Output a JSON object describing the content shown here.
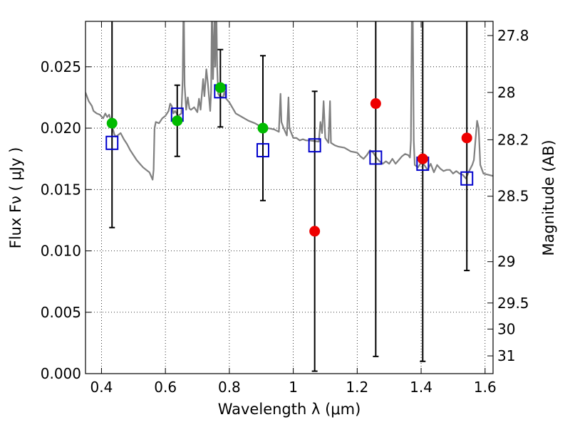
{
  "chart_data": {
    "type": "scatter",
    "title": "",
    "xlabel": "Wavelength  λ (μm)",
    "ylabel_left": "Flux  Fν  ( μJy )",
    "ylabel_right": "Magnitude (AB)",
    "xlim": [
      0.35,
      1.625
    ],
    "ylim": [
      0.0,
      0.0287
    ],
    "grid": true,
    "x_ticks": [
      0.4,
      0.6,
      0.8,
      1.0,
      1.2,
      1.4,
      1.6
    ],
    "x_tick_labels": [
      "0.4",
      "0.6",
      "0.8",
      "1",
      "1.2",
      "1.4",
      "1.6"
    ],
    "y_ticks": [
      0.0,
      0.005,
      0.01,
      0.015,
      0.02,
      0.025
    ],
    "y_tick_labels": [
      "0.000",
      "0.005",
      "0.010",
      "0.015",
      "0.020",
      "0.025"
    ],
    "right_ticks": [
      {
        "mag": 27.8,
        "label": "27.8"
      },
      {
        "mag": 28.0,
        "label": "28"
      },
      {
        "mag": 28.2,
        "label": "28.2"
      },
      {
        "mag": 28.5,
        "label": "28.5"
      },
      {
        "mag": 29.0,
        "label": "29"
      },
      {
        "mag": 29.5,
        "label": "29.5"
      },
      {
        "mag": 30.0,
        "label": "30"
      },
      {
        "mag": 31.0,
        "label": "31"
      }
    ],
    "series": [
      {
        "kind": "line",
        "color": "#808080",
        "points": [
          [
            0.35,
            0.0229
          ],
          [
            0.36,
            0.0222
          ],
          [
            0.37,
            0.0218
          ],
          [
            0.375,
            0.0214
          ],
          [
            0.385,
            0.0212
          ],
          [
            0.395,
            0.0211
          ],
          [
            0.405,
            0.0208
          ],
          [
            0.412,
            0.0212
          ],
          [
            0.418,
            0.0209
          ],
          [
            0.424,
            0.0211
          ],
          [
            0.43,
            0.0206
          ],
          [
            0.436,
            0.0199
          ],
          [
            0.44,
            0.0195
          ],
          [
            0.445,
            0.0193
          ],
          [
            0.45,
            0.0194
          ],
          [
            0.46,
            0.0196
          ],
          [
            0.47,
            0.0191
          ],
          [
            0.48,
            0.0187
          ],
          [
            0.49,
            0.0182
          ],
          [
            0.5,
            0.0178
          ],
          [
            0.51,
            0.0174
          ],
          [
            0.52,
            0.0171
          ],
          [
            0.53,
            0.0168
          ],
          [
            0.54,
            0.0166
          ],
          [
            0.55,
            0.0164
          ],
          [
            0.555,
            0.0161
          ],
          [
            0.56,
            0.0158
          ],
          [
            0.563,
            0.0166
          ],
          [
            0.566,
            0.02
          ],
          [
            0.57,
            0.0205
          ],
          [
            0.58,
            0.0204
          ],
          [
            0.59,
            0.0208
          ],
          [
            0.6,
            0.021
          ],
          [
            0.61,
            0.0214
          ],
          [
            0.615,
            0.022
          ],
          [
            0.62,
            0.0218
          ],
          [
            0.625,
            0.0212
          ],
          [
            0.63,
            0.0214
          ],
          [
            0.64,
            0.021
          ],
          [
            0.65,
            0.0212
          ],
          [
            0.654,
            0.024
          ],
          [
            0.656,
            0.0287
          ],
          [
            0.658,
            0.0287
          ],
          [
            0.66,
            0.0235
          ],
          [
            0.665,
            0.0215
          ],
          [
            0.67,
            0.0225
          ],
          [
            0.675,
            0.0216
          ],
          [
            0.68,
            0.0215
          ],
          [
            0.69,
            0.0217
          ],
          [
            0.7,
            0.0213
          ],
          [
            0.705,
            0.0224
          ],
          [
            0.71,
            0.0215
          ],
          [
            0.718,
            0.024
          ],
          [
            0.722,
            0.0226
          ],
          [
            0.728,
            0.0248
          ],
          [
            0.733,
            0.0236
          ],
          [
            0.74,
            0.0214
          ],
          [
            0.743,
            0.023
          ],
          [
            0.745,
            0.0287
          ],
          [
            0.747,
            0.0287
          ],
          [
            0.749,
            0.024
          ],
          [
            0.752,
            0.027
          ],
          [
            0.754,
            0.0287
          ],
          [
            0.756,
            0.025
          ],
          [
            0.758,
            0.0287
          ],
          [
            0.76,
            0.0287
          ],
          [
            0.762,
            0.025
          ],
          [
            0.765,
            0.0228
          ],
          [
            0.77,
            0.0226
          ],
          [
            0.78,
            0.0225
          ],
          [
            0.785,
            0.023
          ],
          [
            0.79,
            0.0224
          ],
          [
            0.8,
            0.0221
          ],
          [
            0.82,
            0.0212
          ],
          [
            0.84,
            0.0209
          ],
          [
            0.86,
            0.0206
          ],
          [
            0.88,
            0.0204
          ],
          [
            0.9,
            0.0201
          ],
          [
            0.92,
            0.02
          ],
          [
            0.94,
            0.0199
          ],
          [
            0.955,
            0.0197
          ],
          [
            0.96,
            0.0228
          ],
          [
            0.963,
            0.0205
          ],
          [
            0.97,
            0.02
          ],
          [
            0.98,
            0.0194
          ],
          [
            0.985,
            0.0225
          ],
          [
            0.988,
            0.02
          ],
          [
            1.0,
            0.0192
          ],
          [
            1.01,
            0.0192
          ],
          [
            1.02,
            0.019
          ],
          [
            1.03,
            0.0191
          ],
          [
            1.04,
            0.019
          ],
          [
            1.05,
            0.019
          ],
          [
            1.08,
            0.0189
          ],
          [
            1.085,
            0.0205
          ],
          [
            1.09,
            0.0196
          ],
          [
            1.095,
            0.0222
          ],
          [
            1.1,
            0.0192
          ],
          [
            1.11,
            0.0188
          ],
          [
            1.115,
            0.0222
          ],
          [
            1.118,
            0.0188
          ],
          [
            1.13,
            0.0186
          ],
          [
            1.14,
            0.0185
          ],
          [
            1.16,
            0.0184
          ],
          [
            1.18,
            0.0181
          ],
          [
            1.2,
            0.018
          ],
          [
            1.21,
            0.0177
          ],
          [
            1.22,
            0.0175
          ],
          [
            1.23,
            0.0178
          ],
          [
            1.24,
            0.0182
          ],
          [
            1.25,
            0.018
          ],
          [
            1.26,
            0.0176
          ],
          [
            1.27,
            0.0173
          ],
          [
            1.28,
            0.0171
          ],
          [
            1.29,
            0.0173
          ],
          [
            1.3,
            0.0171
          ],
          [
            1.31,
            0.0175
          ],
          [
            1.32,
            0.0171
          ],
          [
            1.33,
            0.0174
          ],
          [
            1.34,
            0.0177
          ],
          [
            1.35,
            0.0179
          ],
          [
            1.36,
            0.0178
          ],
          [
            1.365,
            0.0176
          ],
          [
            1.368,
            0.019
          ],
          [
            1.371,
            0.0287
          ],
          [
            1.374,
            0.0287
          ],
          [
            1.377,
            0.019
          ],
          [
            1.38,
            0.017
          ],
          [
            1.39,
            0.0168
          ],
          [
            1.4,
            0.0172
          ],
          [
            1.41,
            0.017
          ],
          [
            1.42,
            0.0166
          ],
          [
            1.43,
            0.0171
          ],
          [
            1.44,
            0.0164
          ],
          [
            1.45,
            0.017
          ],
          [
            1.46,
            0.0167
          ],
          [
            1.47,
            0.0165
          ],
          [
            1.48,
            0.0166
          ],
          [
            1.49,
            0.0166
          ],
          [
            1.5,
            0.0163
          ],
          [
            1.51,
            0.0165
          ],
          [
            1.52,
            0.0163
          ],
          [
            1.53,
            0.0162
          ],
          [
            1.54,
            0.0159
          ],
          [
            1.55,
            0.0165
          ],
          [
            1.56,
            0.017
          ],
          [
            1.565,
            0.0174
          ],
          [
            1.57,
            0.019
          ],
          [
            1.575,
            0.0206
          ],
          [
            1.58,
            0.02
          ],
          [
            1.585,
            0.017
          ],
          [
            1.595,
            0.0163
          ],
          [
            1.61,
            0.0162
          ],
          [
            1.625,
            0.0161
          ]
        ]
      },
      {
        "kind": "errorbar",
        "color": "#000000",
        "items": [
          {
            "x": 0.433,
            "lo": 0.0119,
            "hi": 0.0287,
            "cap_hi": false
          },
          {
            "x": 0.637,
            "lo": 0.0177,
            "hi": 0.0235,
            "cap_hi": true
          },
          {
            "x": 0.772,
            "lo": 0.0201,
            "hi": 0.0264,
            "cap_hi": true
          },
          {
            "x": 0.905,
            "lo": 0.0141,
            "hi": 0.0259,
            "cap_hi": true
          },
          {
            "x": 1.067,
            "lo": 0.0002,
            "hi": 0.023,
            "cap_hi": true
          },
          {
            "x": 1.258,
            "lo": 0.0014,
            "hi": 0.0287,
            "cap_hi": false
          },
          {
            "x": 1.405,
            "lo": 0.001,
            "hi": 0.0287,
            "cap_hi": false
          },
          {
            "x": 1.543,
            "lo": 0.0084,
            "hi": 0.0287,
            "cap_hi": false
          }
        ]
      },
      {
        "kind": "square",
        "color": "#0000cc",
        "points": [
          [
            0.433,
            0.0188
          ],
          [
            0.637,
            0.0211
          ],
          [
            0.772,
            0.023
          ],
          [
            0.905,
            0.0182
          ],
          [
            1.067,
            0.0186
          ],
          [
            1.258,
            0.0176
          ],
          [
            1.405,
            0.0171
          ],
          [
            1.543,
            0.0159
          ]
        ]
      },
      {
        "kind": "circle",
        "color": "#00bb00",
        "points": [
          [
            0.433,
            0.0204
          ],
          [
            0.637,
            0.0206
          ],
          [
            0.772,
            0.0233
          ],
          [
            0.905,
            0.02
          ]
        ]
      },
      {
        "kind": "circle",
        "color": "#ee0000",
        "points": [
          [
            1.067,
            0.0116
          ],
          [
            1.258,
            0.022
          ],
          [
            1.405,
            0.0175
          ],
          [
            1.543,
            0.0192
          ]
        ]
      }
    ]
  }
}
